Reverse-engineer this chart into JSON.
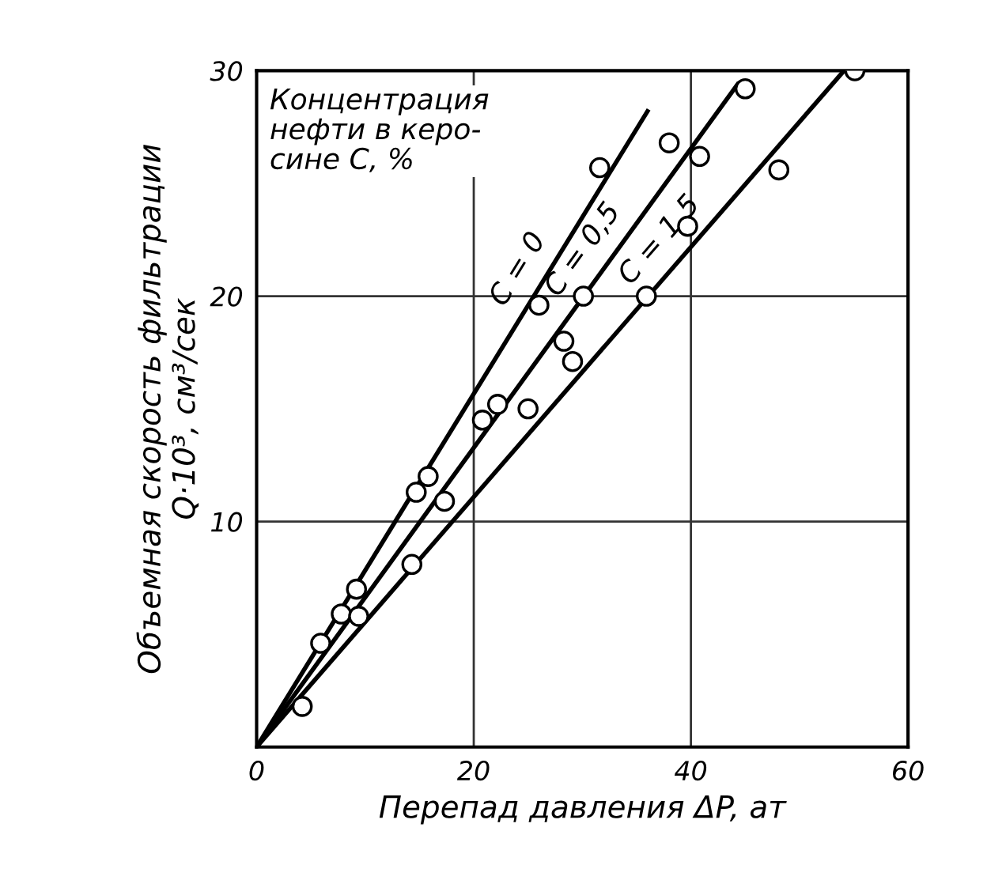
{
  "chart_data": {
    "type": "line",
    "xlabel": "Перепад давления ΔP, ат",
    "ylabel": "Объемная скорость фильтрации\nQ·10³, см³/сек",
    "annotations": [
      "Концентрация\nнефти в керо-\nсине С, %"
    ],
    "series": [
      {
        "name": "C = 0",
        "color": "#000000",
        "x": [
          0,
          36.0
        ],
        "values": [
          0,
          28.2
        ]
      },
      {
        "name": "C = 0,5",
        "color": "#000000",
        "x": [
          0,
          44.3
        ],
        "values": [
          0,
          29.4
        ]
      },
      {
        "name": "C = 1,5",
        "color": "#000000",
        "x": [
          0,
          54.1
        ],
        "values": [
          0,
          30.0
        ]
      },
      {
        "type": "scatter",
        "color": "#000000",
        "marker": "circle",
        "x": [
          55.1,
          45.0,
          38.0,
          40.8,
          31.6,
          48.1,
          39.7,
          26.0,
          30.1,
          35.9,
          28.3,
          29.1,
          22.2,
          20.8,
          25.0,
          15.8,
          14.7,
          17.3,
          14.3,
          9.2,
          7.8,
          9.4,
          5.9,
          4.2
        ],
        "values": [
          30.0,
          29.2,
          26.8,
          26.2,
          25.7,
          25.6,
          23.1,
          19.6,
          20.0,
          20.0,
          18.0,
          17.1,
          15.2,
          14.5,
          15.0,
          12.0,
          11.3,
          10.9,
          8.1,
          7.0,
          5.9,
          5.8,
          4.6,
          1.8
        ]
      }
    ],
    "xlim": [
      0,
      60
    ],
    "ylim": [
      0,
      30
    ],
    "xticks": [
      0,
      20,
      40,
      60
    ],
    "yticks": [
      10,
      20,
      30
    ],
    "grid": true,
    "line_style": "solid"
  }
}
